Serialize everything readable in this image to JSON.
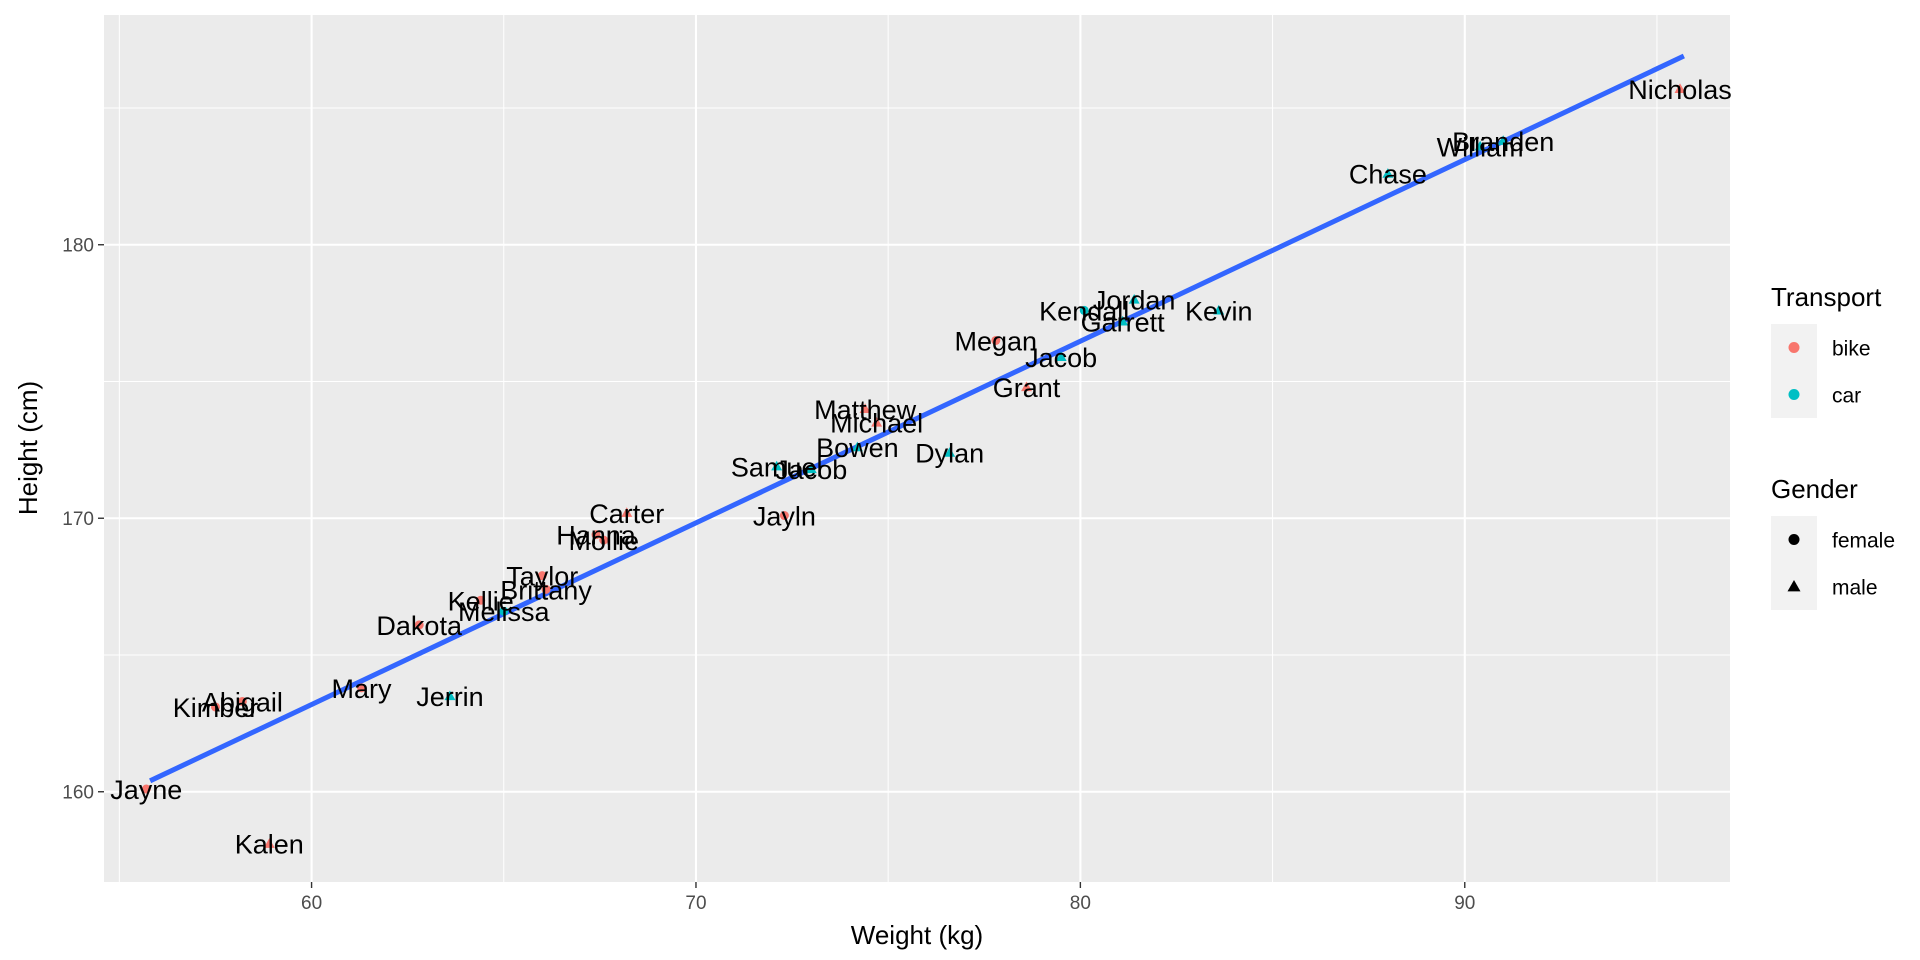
{
  "chart_data": {
    "type": "scatter",
    "xlabel": "Weight (kg)",
    "ylabel": "Height (cm)",
    "xlim": [
      54.6,
      96.9
    ],
    "ylim": [
      156.7,
      188.4
    ],
    "x_ticks": [
      60,
      70,
      80,
      90
    ],
    "y_ticks": [
      160,
      170,
      180
    ],
    "grid": true,
    "legend_position": "right",
    "colors": {
      "bike": "#F8766D",
      "car": "#00BFC4",
      "trend_line": "#3366FF",
      "panel": "#EBEBEB"
    },
    "trend_line": {
      "x": [
        55.8,
        95.7
      ],
      "y": [
        160.4,
        186.9
      ]
    },
    "legends": [
      {
        "title": "Transport",
        "items": [
          {
            "label": "bike",
            "symbol": "circle",
            "color": "#F8766D"
          },
          {
            "label": "car",
            "symbol": "circle",
            "color": "#00BFC4"
          }
        ]
      },
      {
        "title": "Gender",
        "items": [
          {
            "label": "female",
            "symbol": "circle",
            "color": "#000000"
          },
          {
            "label": "male",
            "symbol": "triangle",
            "color": "#000000"
          }
        ]
      }
    ],
    "points": [
      {
        "name": "Nicholas",
        "x": 95.6,
        "y": 185.7,
        "transport": "bike",
        "gender": "male"
      },
      {
        "name": "Branden",
        "x": 91.0,
        "y": 183.8,
        "transport": "car",
        "gender": "male"
      },
      {
        "name": "William",
        "x": 90.4,
        "y": 183.6,
        "transport": "car",
        "gender": "male"
      },
      {
        "name": "Chase",
        "x": 88.0,
        "y": 182.6,
        "transport": "car",
        "gender": "male"
      },
      {
        "name": "Kevin",
        "x": 83.6,
        "y": 177.6,
        "transport": "car",
        "gender": "male"
      },
      {
        "name": "Jordan",
        "x": 81.4,
        "y": 178.0,
        "transport": "car",
        "gender": "male"
      },
      {
        "name": "Garrett",
        "x": 81.1,
        "y": 177.2,
        "transport": "car",
        "gender": "male"
      },
      {
        "name": "Kendall",
        "x": 80.1,
        "y": 177.6,
        "transport": "car",
        "gender": "female"
      },
      {
        "name": "Jacob",
        "x": 79.5,
        "y": 175.9,
        "transport": "car",
        "gender": "male"
      },
      {
        "name": "Megan",
        "x": 77.8,
        "y": 176.5,
        "transport": "bike",
        "gender": "female"
      },
      {
        "name": "Grant",
        "x": 78.6,
        "y": 174.8,
        "transport": "bike",
        "gender": "male"
      },
      {
        "name": "Matthew",
        "x": 74.4,
        "y": 174.0,
        "transport": "bike",
        "gender": "male"
      },
      {
        "name": "Michael",
        "x": 74.7,
        "y": 173.5,
        "transport": "bike",
        "gender": "male"
      },
      {
        "name": "Bowen",
        "x": 74.2,
        "y": 172.6,
        "transport": "car",
        "gender": "male"
      },
      {
        "name": "Dylan",
        "x": 76.6,
        "y": 172.4,
        "transport": "car",
        "gender": "male"
      },
      {
        "name": "Jacob",
        "x": 73.0,
        "y": 171.8,
        "transport": "car",
        "gender": "male"
      },
      {
        "name": "Samuel",
        "x": 72.1,
        "y": 171.9,
        "transport": "car",
        "gender": "male"
      },
      {
        "name": "Jayln",
        "x": 72.3,
        "y": 170.1,
        "transport": "bike",
        "gender": "female"
      },
      {
        "name": "Carter",
        "x": 68.2,
        "y": 170.2,
        "transport": "bike",
        "gender": "male"
      },
      {
        "name": "Hanna",
        "x": 67.4,
        "y": 169.4,
        "transport": "bike",
        "gender": "female"
      },
      {
        "name": "Mollie",
        "x": 67.6,
        "y": 169.2,
        "transport": "bike",
        "gender": "female"
      },
      {
        "name": "Taylor",
        "x": 66.0,
        "y": 167.9,
        "transport": "bike",
        "gender": "female"
      },
      {
        "name": "Brittany",
        "x": 66.1,
        "y": 167.4,
        "transport": "bike",
        "gender": "female"
      },
      {
        "name": "Kellie",
        "x": 64.4,
        "y": 167.0,
        "transport": "bike",
        "gender": "female"
      },
      {
        "name": "Melissa",
        "x": 65.0,
        "y": 166.6,
        "transport": "car",
        "gender": "female"
      },
      {
        "name": "Dakota",
        "x": 62.8,
        "y": 166.1,
        "transport": "bike",
        "gender": "female"
      },
      {
        "name": "Mary",
        "x": 61.3,
        "y": 163.8,
        "transport": "bike",
        "gender": "female"
      },
      {
        "name": "Jerrin",
        "x": 63.6,
        "y": 163.5,
        "transport": "car",
        "gender": "male"
      },
      {
        "name": "Abigail",
        "x": 58.2,
        "y": 163.3,
        "transport": "bike",
        "gender": "female"
      },
      {
        "name": "Kimber",
        "x": 57.5,
        "y": 163.1,
        "transport": "bike",
        "gender": "female"
      },
      {
        "name": "Jayne",
        "x": 55.7,
        "y": 160.1,
        "transport": "bike",
        "gender": "female"
      },
      {
        "name": "Kalen",
        "x": 58.9,
        "y": 158.1,
        "transport": "bike",
        "gender": "male"
      }
    ]
  }
}
